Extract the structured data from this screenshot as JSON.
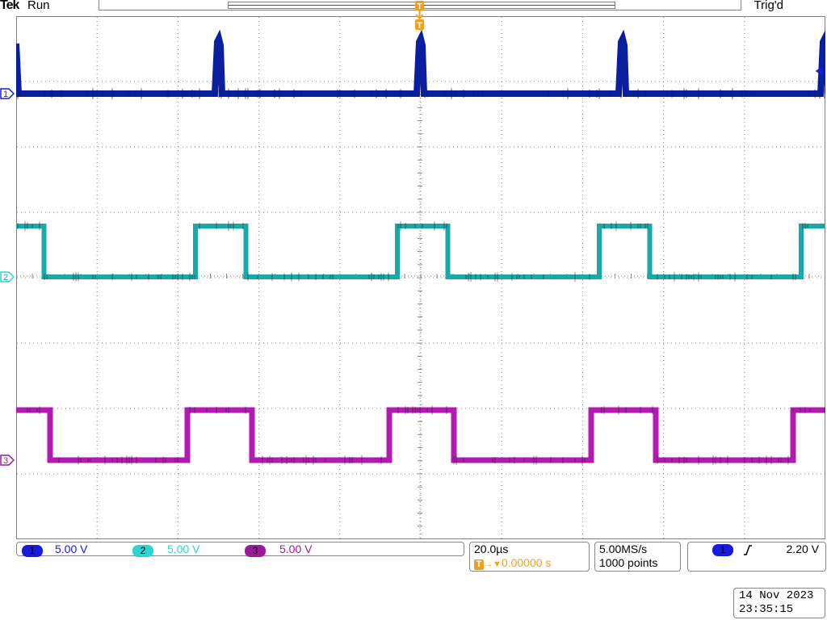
{
  "header": {
    "brand": "Tek",
    "run_state": "Run",
    "trigger_state": "Trig'd",
    "trigger_marker": "T"
  },
  "channels": [
    {
      "id": "1",
      "scale": "5.00 V",
      "color": "#1a1adc",
      "trace_color": "#0a1fa0"
    },
    {
      "id": "2",
      "scale": "5.00 V",
      "color": "#2ed3d3",
      "trace_color": "#1aa9a9"
    },
    {
      "id": "3",
      "scale": "5.00 V",
      "color": "#9c1a9c",
      "trace_color": "#b21ab2"
    }
  ],
  "timebase": {
    "scale": "20.0µs",
    "trigger_position_icon": "T",
    "trigger_position_arrow": "→▼",
    "trigger_position": "0.00000 s"
  },
  "acquisition": {
    "sample_rate": "5.00MS/s",
    "record_length": "1000 points"
  },
  "trigger": {
    "source": "1",
    "slope_icon": "rising-edge-icon",
    "level": "2.20 V"
  },
  "datetime": {
    "date": "14 Nov 2023",
    "time": "23:35:15"
  },
  "colors": {
    "trigger_marker": "#f0a020",
    "graticule": "#8a8a8a",
    "frame": "#7f7f7f"
  }
}
